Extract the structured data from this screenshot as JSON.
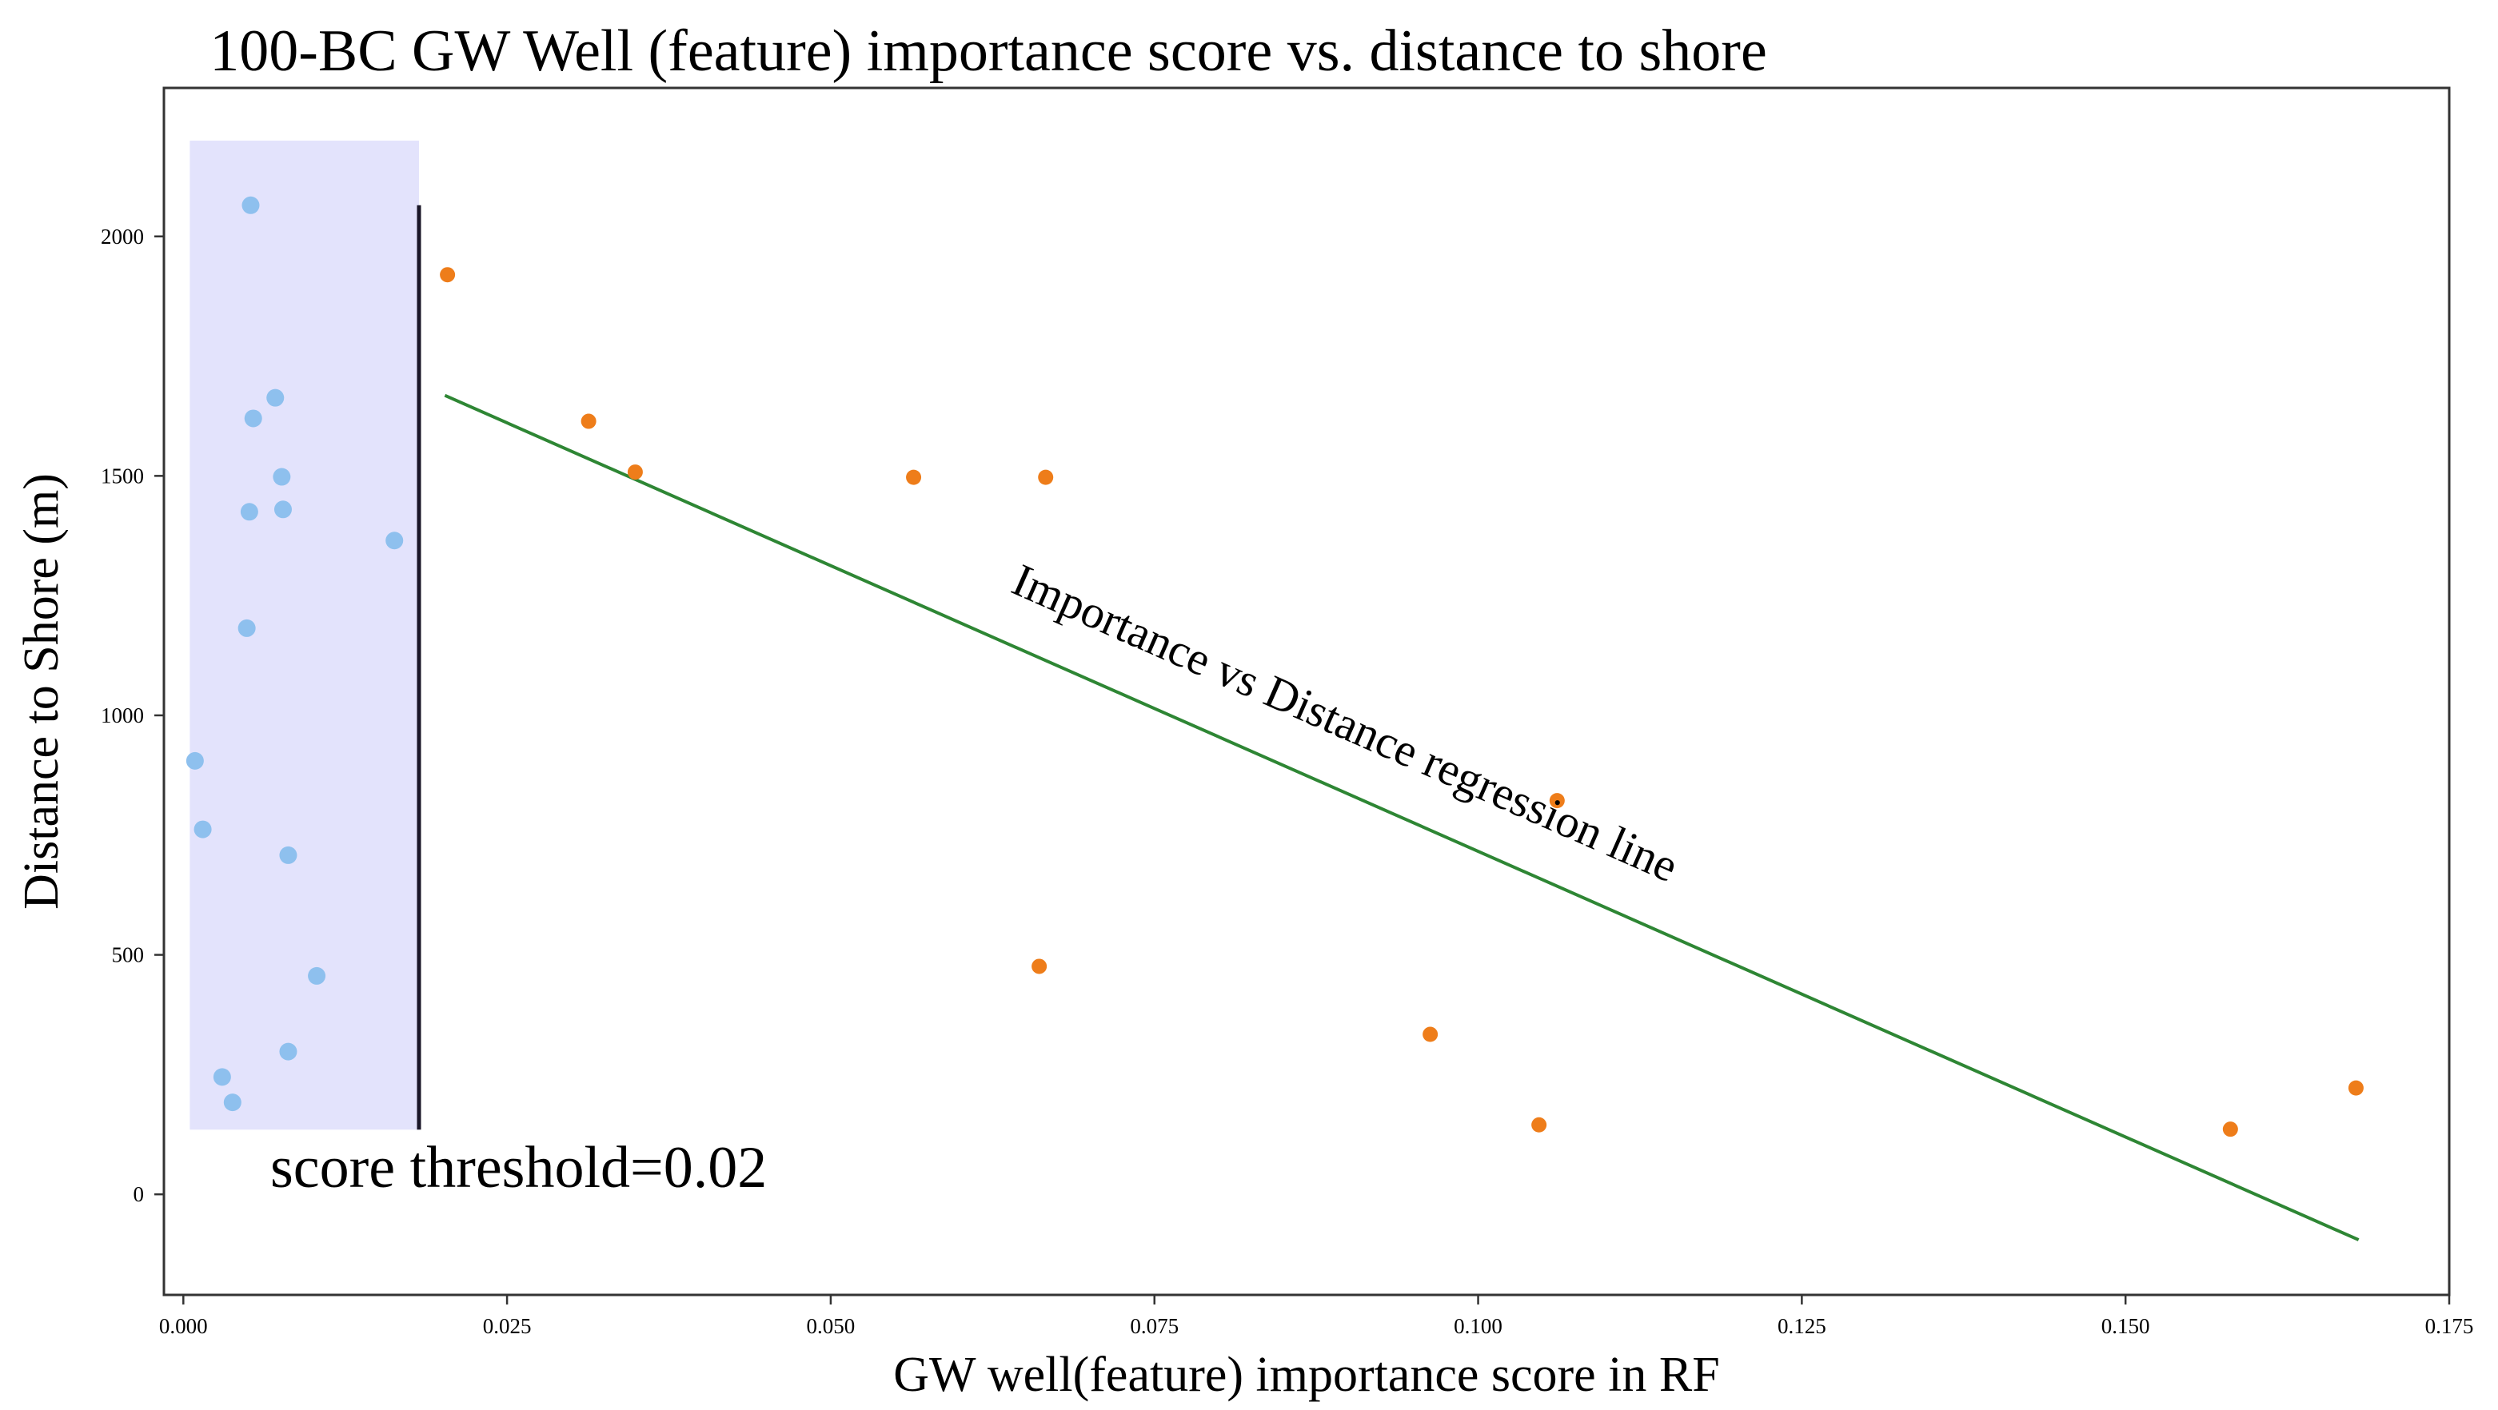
{
  "chart_data": {
    "type": "scatter",
    "title": "100-BC GW Well (feature) importance score vs. distance to shore",
    "xlabel": "GW well(feature) importance score in RF",
    "ylabel": "Distance to Shore (m)",
    "xlim": [
      -0.0015,
      0.175
    ],
    "ylim": [
      -210,
      2310
    ],
    "x_ticks": [
      0.0,
      0.025,
      0.05,
      0.075,
      0.1,
      0.125,
      0.15,
      0.175
    ],
    "x_tick_labels": [
      "0.000",
      "0.025",
      "0.050",
      "0.075",
      "0.100",
      "0.125",
      "0.150",
      "0.175"
    ],
    "y_ticks": [
      0,
      500,
      1000,
      1500,
      2000
    ],
    "y_tick_labels": [
      "0",
      "500",
      "1000",
      "1500",
      "2000"
    ],
    "grid": false,
    "series": [
      {
        "color": "#8ec0ee",
        "points": [
          [
            0.0052,
            2065
          ],
          [
            0.0071,
            1663
          ],
          [
            0.0054,
            1620
          ],
          [
            0.0076,
            1498
          ],
          [
            0.0051,
            1425
          ],
          [
            0.0077,
            1430
          ],
          [
            0.0163,
            1365
          ],
          [
            0.0049,
            1182
          ],
          [
            0.0009,
            905
          ],
          [
            0.0015,
            762
          ],
          [
            0.0081,
            708
          ],
          [
            0.0103,
            456
          ],
          [
            0.0081,
            298
          ],
          [
            0.003,
            245
          ],
          [
            0.0038,
            192
          ]
        ]
      },
      {
        "color": "#ee7d1a",
        "points": [
          [
            0.0204,
            1920
          ],
          [
            0.0313,
            1614
          ],
          [
            0.0349,
            1508
          ],
          [
            0.0564,
            1497
          ],
          [
            0.0666,
            1497
          ],
          [
            0.1061,
            822
          ],
          [
            0.0661,
            476
          ],
          [
            0.0963,
            334
          ],
          [
            0.1047,
            145
          ],
          [
            0.1581,
            136
          ],
          [
            0.1678,
            222
          ]
        ]
      }
    ],
    "regression_line": {
      "label": "Importance vs Distance regression line",
      "color": "#2e8634",
      "from": [
        0.0202,
        1668
      ],
      "to": [
        0.168,
        -95
      ]
    },
    "threshold": {
      "label": "score threshold=0.02",
      "band_color": "#e3e3fc",
      "band_x": [
        0.0005,
        0.0182
      ],
      "band_y": [
        135,
        2200
      ],
      "line_x": 0.0182,
      "line_y": [
        135,
        2065
      ],
      "line_color": "#1a1628"
    }
  }
}
